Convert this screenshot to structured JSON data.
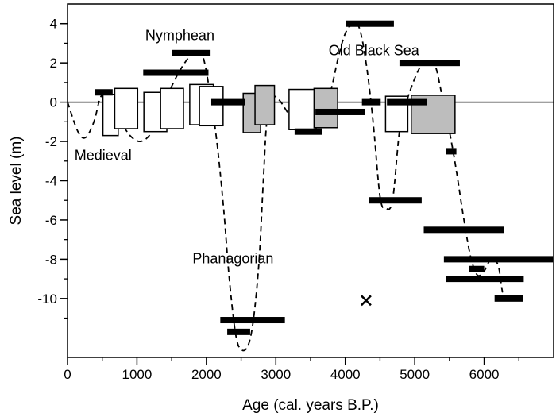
{
  "chart_data": {
    "type": "scatter",
    "title": "",
    "xlabel": "Age (cal. years B.P.)",
    "ylabel": "Sea level (m)",
    "xlim": [
      0,
      7000
    ],
    "ylim": [
      -13,
      5
    ],
    "x_ticks": [
      0,
      1000,
      2000,
      3000,
      4000,
      5000,
      6000
    ],
    "x_minor_ticks": [
      500,
      1500,
      2500,
      3500,
      4500,
      5500,
      6500
    ],
    "y_ticks": [
      4,
      2,
      0,
      -2,
      -4,
      -6,
      -8,
      -10
    ],
    "y_minor_ticks": [
      3,
      1,
      -1,
      -3,
      -5,
      -7,
      -9,
      -11
    ],
    "x_tick_labels": [
      "0",
      "1000",
      "2000",
      "3000",
      "4000",
      "5000",
      "6000"
    ],
    "y_tick_labels": [
      "4",
      "2",
      "0",
      "-2",
      "-4",
      "-6",
      "-8",
      "-10"
    ],
    "zero_line": 0,
    "grid": false,
    "annotations": [
      {
        "text": "Nymphean",
        "x": 1120,
        "y": 3.15
      },
      {
        "text": "Old Black Sea",
        "x": 3760,
        "y": 2.4
      },
      {
        "text": "Medieval",
        "x": 100,
        "y": -2.95
      },
      {
        "text": "Phanagorian",
        "x": 1800,
        "y": -8.2
      }
    ],
    "bars": [
      {
        "x1": 400,
        "x2": 650,
        "y": 0.5
      },
      {
        "x1": 1090,
        "x2": 2030,
        "y": 1.5
      },
      {
        "x1": 1500,
        "x2": 2060,
        "y": 2.5
      },
      {
        "x1": 2070,
        "x2": 2560,
        "y": 0
      },
      {
        "x1": 2200,
        "x2": 3130,
        "y": -11.1
      },
      {
        "x1": 2300,
        "x2": 2630,
        "y": -11.7
      },
      {
        "x1": 3270,
        "x2": 3670,
        "y": -1.5
      },
      {
        "x1": 3570,
        "x2": 4280,
        "y": -0.5
      },
      {
        "x1": 4010,
        "x2": 4700,
        "y": 4
      },
      {
        "x1": 4240,
        "x2": 4510,
        "y": 0
      },
      {
        "x1": 4340,
        "x2": 5100,
        "y": -5
      },
      {
        "x1": 4600,
        "x2": 5170,
        "y": 0
      },
      {
        "x1": 4780,
        "x2": 5650,
        "y": 2
      },
      {
        "x1": 5450,
        "x2": 5600,
        "y": -2.5
      },
      {
        "x1": 5130,
        "x2": 6290,
        "y": -6.5
      },
      {
        "x1": 5420,
        "x2": 6990,
        "y": -8
      },
      {
        "x1": 5780,
        "x2": 6000,
        "y": -8.5
      },
      {
        "x1": 5450,
        "x2": 6570,
        "y": -9
      },
      {
        "x1": 6150,
        "x2": 6560,
        "y": -10
      }
    ],
    "boxes": [
      {
        "x1": 510,
        "x2": 730,
        "y_top": 0.4,
        "y_bot": -1.7,
        "fill": "white"
      },
      {
        "x1": 680,
        "x2": 1010,
        "y_top": 0.7,
        "y_bot": -1.35,
        "fill": "white"
      },
      {
        "x1": 1100,
        "x2": 1430,
        "y_top": 0.5,
        "y_bot": -1.5,
        "fill": "white"
      },
      {
        "x1": 1340,
        "x2": 1670,
        "y_top": 0.7,
        "y_bot": -1.35,
        "fill": "white"
      },
      {
        "x1": 1760,
        "x2": 2100,
        "y_top": 0.9,
        "y_bot": -1.15,
        "fill": "white"
      },
      {
        "x1": 1900,
        "x2": 2240,
        "y_top": 0.8,
        "y_bot": -1.2,
        "fill": "white"
      },
      {
        "x1": 2530,
        "x2": 2780,
        "y_top": 0.45,
        "y_bot": -1.55,
        "fill": "gray"
      },
      {
        "x1": 2700,
        "x2": 2980,
        "y_top": 0.85,
        "y_bot": -1.15,
        "fill": "gray"
      },
      {
        "x1": 3190,
        "x2": 3580,
        "y_top": 0.65,
        "y_bot": -1.4,
        "fill": "white"
      },
      {
        "x1": 3550,
        "x2": 3890,
        "y_top": 0.7,
        "y_bot": -1.3,
        "fill": "gray"
      },
      {
        "x1": 4580,
        "x2": 4900,
        "y_top": 0.3,
        "y_bot": -1.5,
        "fill": "white"
      },
      {
        "x1": 4950,
        "x2": 5580,
        "y_top": 0.35,
        "y_bot": -1.6,
        "fill": "gray"
      }
    ],
    "cross_marker": {
      "x": 4300,
      "y": -10.1,
      "symbol": "x"
    },
    "dashed_curve": [
      [
        0,
        0
      ],
      [
        150,
        -1.5
      ],
      [
        260,
        -1.8
      ],
      [
        380,
        -1
      ],
      [
        470,
        0.2
      ],
      [
        560,
        0.5
      ],
      [
        660,
        0
      ],
      [
        760,
        -0.9
      ],
      [
        900,
        -1.7
      ],
      [
        1050,
        -2
      ],
      [
        1200,
        -1.6
      ],
      [
        1350,
        -0.5
      ],
      [
        1500,
        0.8
      ],
      [
        1650,
        1.8
      ],
      [
        1800,
        2.5
      ],
      [
        1880,
        2.6
      ],
      [
        1960,
        2.2
      ],
      [
        2050,
        0.5
      ],
      [
        2150,
        -2
      ],
      [
        2250,
        -5.5
      ],
      [
        2330,
        -9
      ],
      [
        2420,
        -11.8
      ],
      [
        2500,
        -12.6
      ],
      [
        2600,
        -12.4
      ],
      [
        2680,
        -11
      ],
      [
        2760,
        -8
      ],
      [
        2820,
        -4
      ],
      [
        2870,
        -1
      ],
      [
        2950,
        0.2
      ],
      [
        3050,
        0.1
      ],
      [
        3250,
        -0.9
      ],
      [
        3450,
        -1.3
      ],
      [
        3600,
        -0.9
      ],
      [
        3700,
        -0.3
      ],
      [
        3800,
        0.7
      ],
      [
        3900,
        2.3
      ],
      [
        4000,
        3.5
      ],
      [
        4100,
        3.95
      ],
      [
        4200,
        3.8
      ],
      [
        4300,
        2
      ],
      [
        4400,
        -1
      ],
      [
        4500,
        -4.8
      ],
      [
        4580,
        -5.4
      ],
      [
        4680,
        -5
      ],
      [
        4780,
        -1.5
      ],
      [
        4880,
        0
      ],
      [
        5000,
        1.2
      ],
      [
        5100,
        1.9
      ],
      [
        5200,
        2.1
      ],
      [
        5300,
        1.8
      ],
      [
        5400,
        0.2
      ],
      [
        5500,
        -1.5
      ],
      [
        5600,
        -3.5
      ],
      [
        5700,
        -5.8
      ],
      [
        5800,
        -7.8
      ],
      [
        5900,
        -8.8
      ],
      [
        6000,
        -8.6
      ],
      [
        6100,
        -8
      ],
      [
        6200,
        -8.3
      ],
      [
        6260,
        -9.6
      ],
      [
        6300,
        -10
      ]
    ]
  }
}
